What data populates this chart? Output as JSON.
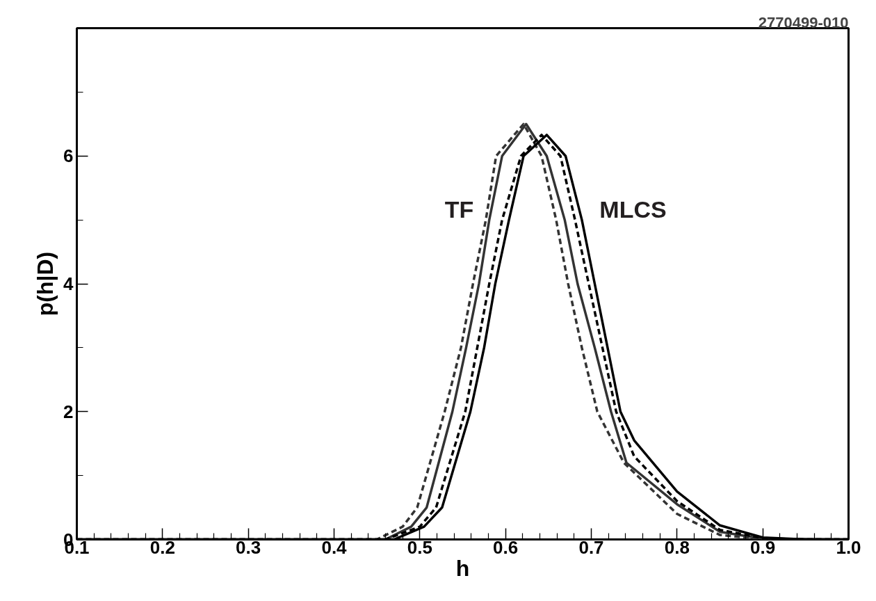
{
  "chart_data": {
    "type": "line",
    "xlabel": "h",
    "ylabel": "p(h|D)",
    "xlim": [
      0.1,
      1.0
    ],
    "ylim": [
      0,
      8
    ],
    "xticks": [
      0.1,
      {
        "value": 0.12,
        "label": null
      },
      {
        "value": 0.14,
        "label": null
      },
      {
        "value": 0.16,
        "label": null
      },
      {
        "value": 0.18,
        "label": null
      },
      0.2,
      {
        "value": 0.22,
        "label": null
      },
      {
        "value": 0.24,
        "label": null
      },
      {
        "value": 0.26,
        "label": null
      },
      {
        "value": 0.28,
        "label": null
      },
      0.3,
      {
        "value": 0.32,
        "label": null
      },
      {
        "value": 0.34,
        "label": null
      },
      {
        "value": 0.36,
        "label": null
      },
      {
        "value": 0.38,
        "label": null
      },
      0.4,
      {
        "value": 0.42,
        "label": null
      },
      {
        "value": 0.44,
        "label": null
      },
      {
        "value": 0.46,
        "label": null
      },
      {
        "value": 0.48,
        "label": null
      },
      0.5,
      {
        "value": 0.52,
        "label": null
      },
      {
        "value": 0.54,
        "label": null
      },
      {
        "value": 0.56,
        "label": null
      },
      {
        "value": 0.58,
        "label": null
      },
      0.6,
      {
        "value": 0.62,
        "label": null
      },
      {
        "value": 0.64,
        "label": null
      },
      {
        "value": 0.66,
        "label": null
      },
      {
        "value": 0.68,
        "label": null
      },
      0.7,
      {
        "value": 0.72,
        "label": null
      },
      {
        "value": 0.74,
        "label": null
      },
      {
        "value": 0.76,
        "label": null
      },
      {
        "value": 0.78,
        "label": null
      },
      0.8,
      {
        "value": 0.82,
        "label": null
      },
      {
        "value": 0.84,
        "label": null
      },
      {
        "value": 0.86,
        "label": null
      },
      {
        "value": 0.88,
        "label": null
      },
      0.9,
      {
        "value": 0.92,
        "label": null
      },
      {
        "value": 0.94,
        "label": null
      },
      {
        "value": 0.96,
        "label": null
      },
      {
        "value": 0.98,
        "label": null
      },
      {
        "value": 1.0,
        "label": "1.0"
      }
    ],
    "yticks": [
      0,
      {
        "value": 1,
        "label": null
      },
      2,
      {
        "value": 3,
        "label": null
      },
      4,
      {
        "value": 5,
        "label": null
      },
      6,
      {
        "value": 7,
        "label": null
      }
    ],
    "grid": false,
    "marker": "none",
    "series": [
      {
        "color": "#333333",
        "line_style": "dashed",
        "x": [
          0.1,
          0.45,
          0.48,
          0.497,
          0.529,
          0.548,
          0.562,
          0.577,
          0.589,
          0.621,
          0.642,
          0.659,
          0.673,
          0.689,
          0.707,
          0.738,
          0.8,
          0.85,
          0.9,
          1.0
        ],
        "values": [
          0,
          0,
          0.2,
          0.5,
          2,
          3,
          4,
          5,
          6,
          6.5,
          6,
          5,
          4,
          3,
          2,
          1.2,
          0.4,
          0.07,
          0,
          0
        ]
      },
      {
        "color": "#333333",
        "line_style": "solid",
        "x": [
          0.1,
          0.46,
          0.49,
          0.508,
          0.538,
          0.554,
          0.569,
          0.581,
          0.596,
          0.624,
          0.648,
          0.669,
          0.684,
          0.704,
          0.723,
          0.741,
          0.8,
          0.85,
          0.9,
          1.0
        ],
        "values": [
          0,
          0,
          0.2,
          0.5,
          2,
          3,
          4,
          5,
          6,
          6.5,
          6,
          5,
          4,
          3,
          2,
          1.2,
          0.55,
          0.12,
          0.01,
          0
        ]
      },
      {
        "color": "#000000",
        "line_style": "dashed",
        "x": [
          0.1,
          0.46,
          0.5,
          0.519,
          0.553,
          0.567,
          0.581,
          0.596,
          0.618,
          0.642,
          0.664,
          0.681,
          0.697,
          0.713,
          0.729,
          0.75,
          0.8,
          0.85,
          0.9,
          0.95,
          1.0
        ],
        "values": [
          0,
          0,
          0.2,
          0.5,
          2,
          3,
          4,
          5,
          6,
          6.33,
          6,
          5,
          4,
          3,
          2,
          1.3,
          0.6,
          0.15,
          0.02,
          0,
          0
        ]
      },
      {
        "color": "#000000",
        "line_style": "solid",
        "x": [
          0.1,
          0.47,
          0.505,
          0.526,
          0.559,
          0.575,
          0.588,
          0.604,
          0.621,
          0.648,
          0.67,
          0.689,
          0.704,
          0.719,
          0.734,
          0.75,
          0.8,
          0.85,
          0.9,
          0.95,
          1.0
        ],
        "values": [
          0,
          0,
          0.2,
          0.5,
          2,
          3,
          4,
          5,
          6,
          6.33,
          6,
          5,
          4,
          3,
          2,
          1.55,
          0.75,
          0.22,
          0.03,
          0,
          0
        ]
      }
    ],
    "annotations": [
      "TF",
      "MLCS",
      "2770499-010"
    ]
  }
}
